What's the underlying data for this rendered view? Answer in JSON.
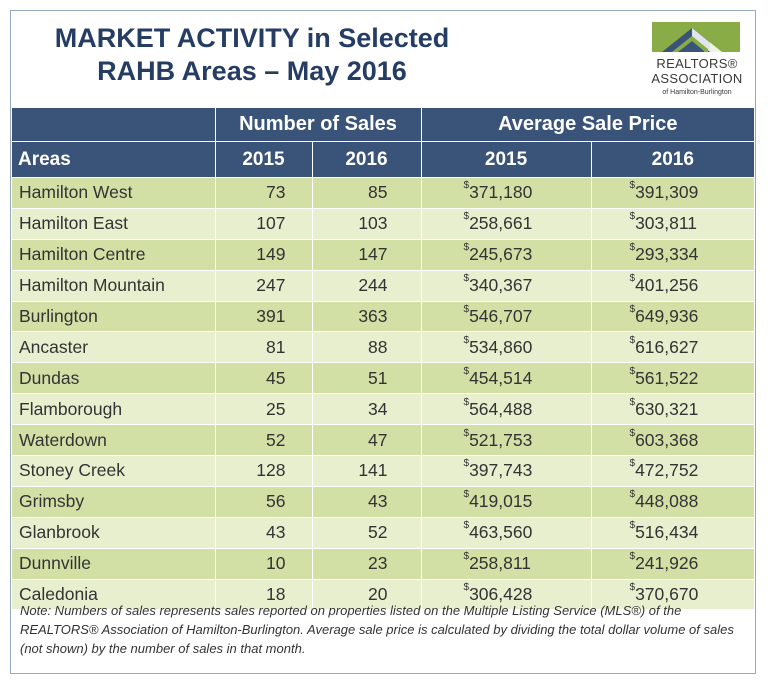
{
  "header": {
    "title_line1": "MARKET ACTIVITY in Selected",
    "title_line2": "RAHB Areas – May 2016"
  },
  "logo": {
    "line1": "REALTORS®",
    "line2": "ASSOCIATION",
    "line3": "of Hamilton-Burlington",
    "colors": {
      "green": "#8aac47",
      "navy": "#3a5379"
    }
  },
  "table": {
    "group_headers": [
      "Number of Sales",
      "Average Sale Price"
    ],
    "col_headers": [
      "Areas",
      "2015",
      "2016",
      "2015",
      "2016"
    ],
    "currency_symbol": "$",
    "rows": [
      {
        "area": "Hamilton West",
        "sales_2015": "73",
        "sales_2016": "85",
        "price_2015": "371,180",
        "price_2016": "391,309"
      },
      {
        "area": "Hamilton East",
        "sales_2015": "107",
        "sales_2016": "103",
        "price_2015": "258,661",
        "price_2016": "303,811"
      },
      {
        "area": "Hamilton Centre",
        "sales_2015": "149",
        "sales_2016": "147",
        "price_2015": "245,673",
        "price_2016": "293,334"
      },
      {
        "area": "Hamilton Mountain",
        "sales_2015": "247",
        "sales_2016": "244",
        "price_2015": "340,367",
        "price_2016": "401,256"
      },
      {
        "area": "Burlington",
        "sales_2015": "391",
        "sales_2016": "363",
        "price_2015": "546,707",
        "price_2016": "649,936"
      },
      {
        "area": "Ancaster",
        "sales_2015": "81",
        "sales_2016": "88",
        "price_2015": "534,860",
        "price_2016": "616,627"
      },
      {
        "area": "Dundas",
        "sales_2015": "45",
        "sales_2016": "51",
        "price_2015": "454,514",
        "price_2016": "561,522"
      },
      {
        "area": "Flamborough",
        "sales_2015": "25",
        "sales_2016": "34",
        "price_2015": "564,488",
        "price_2016": "630,321"
      },
      {
        "area": "Waterdown",
        "sales_2015": "52",
        "sales_2016": "47",
        "price_2015": "521,753",
        "price_2016": "603,368"
      },
      {
        "area": "Stoney Creek",
        "sales_2015": "128",
        "sales_2016": "141",
        "price_2015": "397,743",
        "price_2016": "472,752"
      },
      {
        "area": "Grimsby",
        "sales_2015": "56",
        "sales_2016": "43",
        "price_2015": "419,015",
        "price_2016": "448,088"
      },
      {
        "area": "Glanbrook",
        "sales_2015": "43",
        "sales_2016": "52",
        "price_2015": "463,560",
        "price_2016": "516,434"
      },
      {
        "area": "Dunnville",
        "sales_2015": "10",
        "sales_2016": "23",
        "price_2015": "258,811",
        "price_2016": "241,926"
      },
      {
        "area": "Caledonia",
        "sales_2015": "18",
        "sales_2016": "20",
        "price_2015": "306,428",
        "price_2016": "370,670"
      }
    ]
  },
  "footnote": {
    "text": "Note:  Numbers of sales represents sales reported on properties listed on the Multiple Listing Service (MLS®) of the REALTORS® Association of Hamilton-Burlington.  Average sale price is calculated by dividing the total dollar volume of sales (not shown) by the number of sales in that month."
  },
  "colors": {
    "header_bg": "#3a5379",
    "title": "#263d63",
    "row_dark": "#d2e0a6",
    "row_light": "#e8efcf",
    "border": "#98a8bf"
  }
}
